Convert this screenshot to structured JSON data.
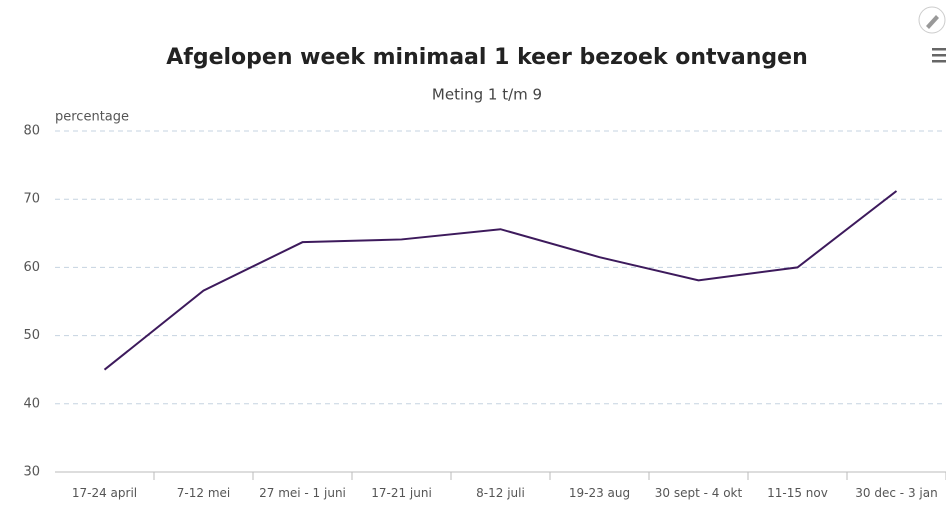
{
  "chart_data": {
    "type": "line",
    "title": "Afgelopen week minimaal 1 keer bezoek ontvangen",
    "subtitle": "Meting 1 t/m 9",
    "y_label": "percentage",
    "categories": [
      "17-24 april",
      "7-12 mei",
      "27 mei - 1 juni",
      "17-21 juni",
      "8-12 juli",
      "19-23 aug",
      "30 sept - 4 okt",
      "11-15 nov",
      "30 dec - 3 jan"
    ],
    "series": [
      {
        "name": "percentage",
        "color": "#3d1a5c",
        "values": [
          45,
          56.6,
          63.7,
          64.1,
          65.6,
          61.5,
          58.1,
          60,
          71.2
        ]
      }
    ],
    "ylim": [
      30,
      80
    ],
    "yticks": [
      30,
      40,
      50,
      60,
      70,
      80
    ],
    "grid": true
  }
}
